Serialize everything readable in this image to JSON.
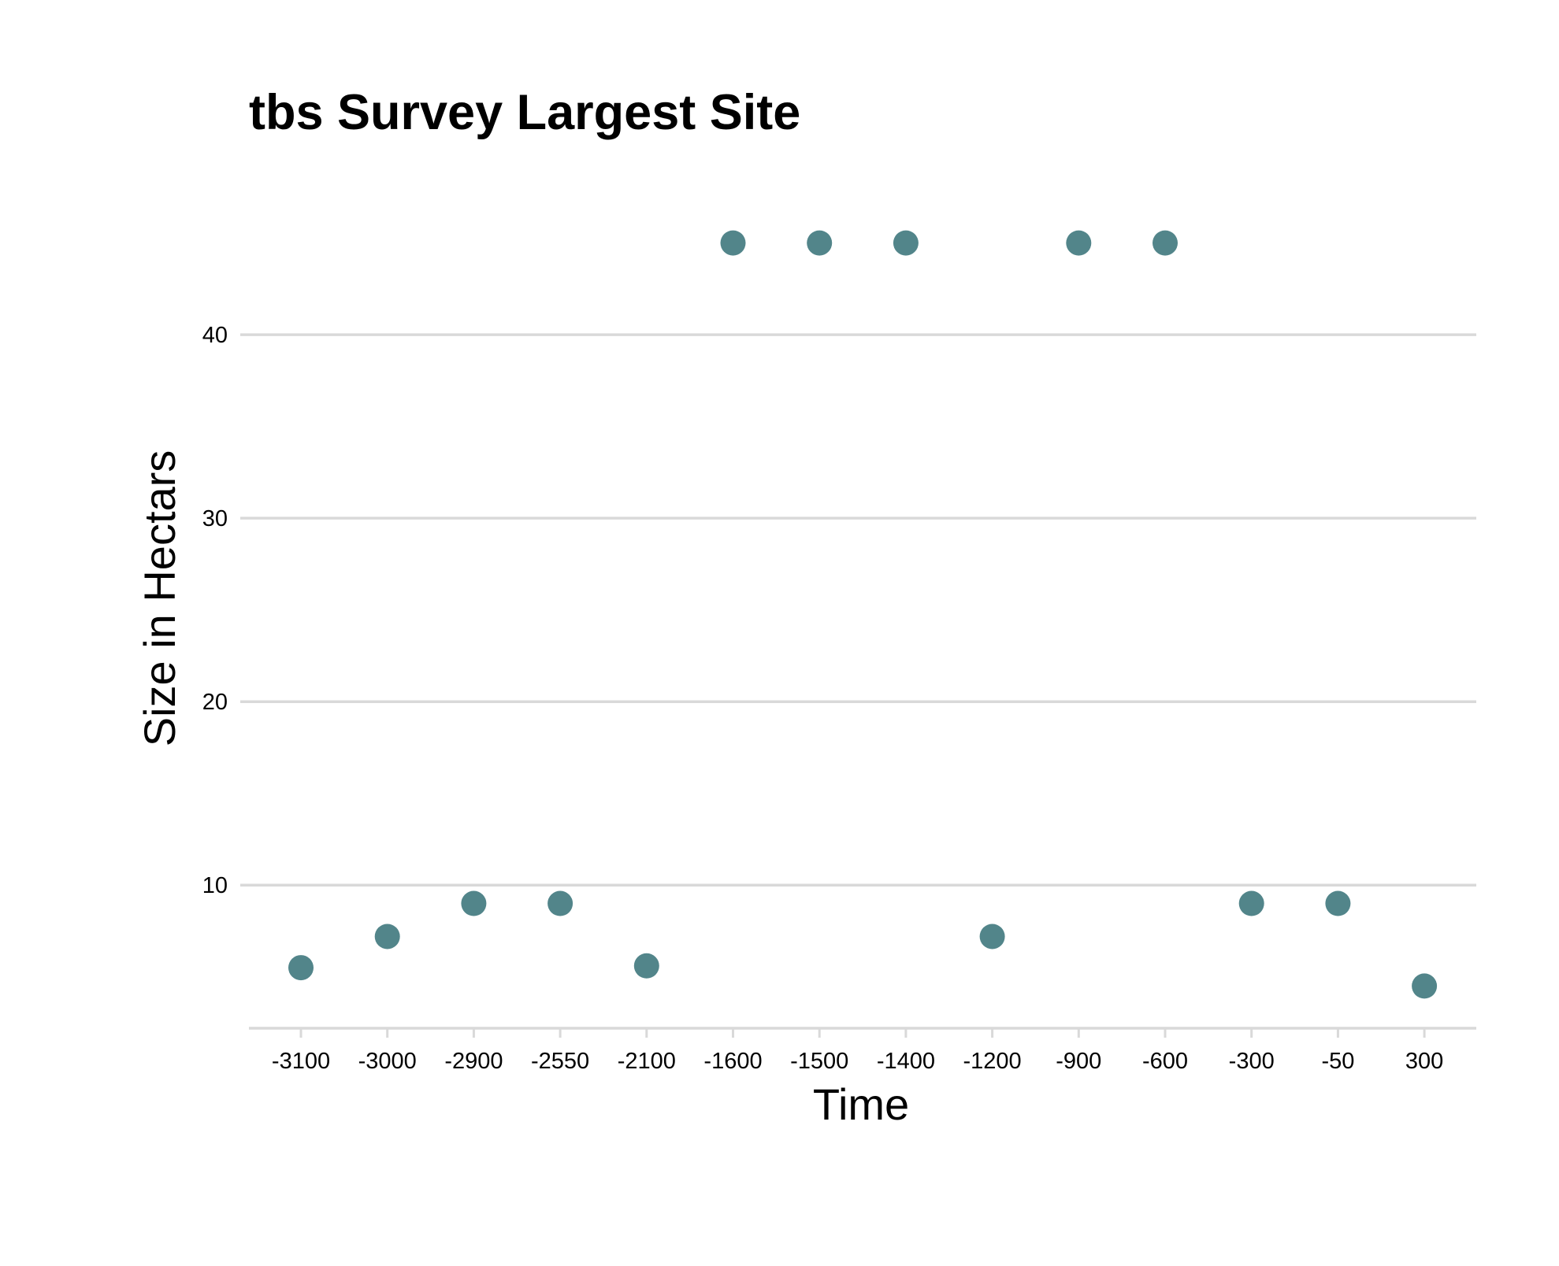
{
  "chart_data": {
    "type": "scatter",
    "title": "tbs Survey Largest Site",
    "xlabel": "Time",
    "ylabel": "Size in Hectars",
    "x_axis_type": "categorical",
    "categories": [
      "-3100",
      "-3000",
      "-2900",
      "-2550",
      "-2100",
      "-1600",
      "-1500",
      "-1400",
      "-1200",
      "-900",
      "-600",
      "-300",
      "-50",
      "300"
    ],
    "values": [
      5.5,
      7.2,
      9.0,
      9.0,
      5.6,
      45.0,
      45.0,
      45.0,
      7.2,
      45.0,
      45.0,
      9.0,
      9.0,
      4.5
    ],
    "y_ticks": [
      10,
      20,
      30,
      40
    ],
    "ylim": [
      2.5,
      47
    ],
    "grid": "horizontal",
    "legend": "none",
    "colors": {
      "point": "#52858a",
      "grid": "#d9d9d9",
      "axis": "#d9d9d9",
      "text": "#000000"
    }
  }
}
